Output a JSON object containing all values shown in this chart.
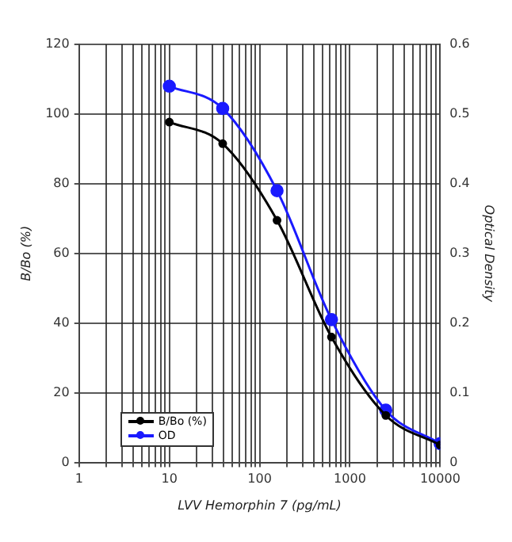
{
  "chart_data": {
    "type": "line",
    "xlabel": "LVV Hemorphin 7 (pg/mL)",
    "ylabel": "B/Bo (%)",
    "y2label": "Optical Density",
    "x": [
      10,
      39,
      156,
      625,
      2500,
      10000
    ],
    "series": [
      {
        "name": "B/Bo (%)",
        "color": "#000000",
        "values": [
          97.7,
          91.5,
          69.5,
          36,
          13.5,
          5
        ]
      },
      {
        "name": "OD",
        "color": "#1a1aff",
        "axis": "y2",
        "values": [
          0.54,
          0.508,
          0.39,
          0.205,
          0.075,
          0.027
        ]
      }
    ],
    "log": "x",
    "xlim": [
      1,
      10000
    ],
    "xticks": [
      1,
      {
        "value": 2,
        "label": null
      },
      {
        "value": 3,
        "label": null
      },
      {
        "value": 4,
        "label": null
      },
      {
        "value": 5,
        "label": null
      },
      {
        "value": 6,
        "label": null
      },
      {
        "value": 7,
        "label": null
      },
      {
        "value": 8,
        "label": null
      },
      {
        "value": 9,
        "label": null
      },
      10,
      {
        "value": 20,
        "label": null
      },
      {
        "value": 30,
        "label": null
      },
      {
        "value": 40,
        "label": null
      },
      {
        "value": 50,
        "label": null
      },
      {
        "value": 60,
        "label": null
      },
      {
        "value": 70,
        "label": null
      },
      {
        "value": 80,
        "label": null
      },
      {
        "value": 90,
        "label": null
      },
      100,
      {
        "value": 200,
        "label": null
      },
      {
        "value": 300,
        "label": null
      },
      {
        "value": 400,
        "label": null
      },
      {
        "value": 500,
        "label": null
      },
      {
        "value": 600,
        "label": null
      },
      {
        "value": 700,
        "label": null
      },
      {
        "value": 800,
        "label": null
      },
      {
        "value": 900,
        "label": null
      },
      1000,
      {
        "value": 2000,
        "label": null
      },
      {
        "value": 3000,
        "label": null
      },
      {
        "value": 4000,
        "label": null
      },
      {
        "value": 5000,
        "label": null
      },
      {
        "value": 6000,
        "label": null
      },
      {
        "value": 7000,
        "label": null
      },
      {
        "value": 8000,
        "label": null
      },
      {
        "value": 9000,
        "label": null
      },
      10000
    ],
    "ylim": [
      0,
      120
    ],
    "yticks": [
      0,
      20,
      40,
      60,
      80,
      100,
      120
    ],
    "y2lim": [
      0,
      0.6
    ],
    "y2ticks": [
      0,
      0.1,
      0.2,
      0.3,
      0.4,
      0.5,
      0.6
    ],
    "grid": true,
    "legend": "bottom left",
    "marker": "circle",
    "line_style": "solid"
  }
}
